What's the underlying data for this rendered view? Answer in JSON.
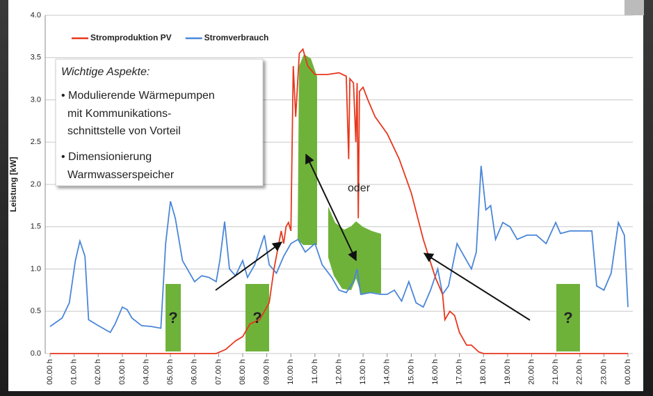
{
  "chart_data": {
    "type": "line",
    "ylabel": "Leistung [kW]",
    "xlim": [
      0,
      24
    ],
    "ylim": [
      0,
      4
    ],
    "yticks": [
      {
        "value": 0,
        "label": "0.0"
      },
      0.5,
      {
        "value": 1,
        "label": "1.0"
      },
      1.5,
      {
        "value": 2,
        "label": "2.0"
      },
      2.5,
      {
        "value": 3,
        "label": "3.0"
      },
      3.5,
      {
        "value": 4,
        "label": "4.0"
      }
    ],
    "xticks": [
      {
        "value": 0,
        "label": "00.00 h"
      },
      {
        "value": 1,
        "label": "01.00 h"
      },
      {
        "value": 2,
        "label": "02.00 h"
      },
      {
        "value": 3,
        "label": "03.00 h"
      },
      {
        "value": 4,
        "label": "04.00 h"
      },
      {
        "value": 5,
        "label": "05.00 h"
      },
      {
        "value": 6,
        "label": "06.00 h"
      },
      {
        "value": 7,
        "label": "07.00 h"
      },
      {
        "value": 8,
        "label": "08.00 h"
      },
      {
        "value": 9,
        "label": "09.00 h"
      },
      {
        "value": 10,
        "label": "10.00 h"
      },
      {
        "value": 11,
        "label": "11.00 h"
      },
      {
        "value": 12,
        "label": "12.00 h"
      },
      {
        "value": 13,
        "label": "13.00 h"
      },
      {
        "value": 14,
        "label": "14.00 h"
      },
      {
        "value": 15,
        "label": "15.00 h"
      },
      {
        "value": 16,
        "label": "16.00 h"
      },
      {
        "value": 17,
        "label": "17.00 h"
      },
      {
        "value": 18,
        "label": "18.00 h"
      },
      {
        "value": 19,
        "label": "19.00 h"
      },
      {
        "value": 20,
        "label": "20.00 h"
      },
      {
        "value": 21,
        "label": "21.00 h"
      },
      {
        "value": 22,
        "label": "22.00 h"
      },
      {
        "value": 23,
        "label": "23.00 h"
      },
      {
        "value": 24,
        "label": "00.00 h"
      }
    ],
    "grid": true,
    "legend": "top",
    "series": [
      {
        "name": "Stromproduktion PV",
        "color": "#e8361c",
        "x": [
          0,
          6.9,
          7.3,
          7.7,
          8.0,
          8.3,
          8.7,
          8.9,
          9.1,
          9.3,
          9.5,
          9.6,
          9.7,
          9.8,
          9.9,
          10.0,
          10.1,
          10.2,
          10.35,
          10.5,
          10.7,
          11.0,
          11.5,
          12.0,
          12.3,
          12.4,
          12.45,
          12.6,
          12.7,
          12.75,
          12.8,
          12.85,
          13.0,
          13.2,
          13.5,
          14.0,
          14.5,
          15.0,
          15.5,
          16.0,
          16.3,
          16.4,
          16.6,
          16.8,
          17.0,
          17.3,
          17.5,
          17.8,
          18.0,
          24
        ],
        "values": [
          0,
          0,
          0.05,
          0.15,
          0.2,
          0.35,
          0.4,
          0.5,
          0.6,
          1.0,
          1.3,
          1.45,
          1.3,
          1.5,
          1.55,
          1.45,
          3.4,
          2.8,
          3.55,
          3.6,
          3.4,
          3.3,
          3.3,
          3.32,
          3.28,
          2.3,
          3.25,
          3.2,
          2.5,
          3.2,
          1.6,
          3.1,
          3.15,
          3.0,
          2.8,
          2.6,
          2.3,
          1.9,
          1.35,
          0.9,
          0.7,
          0.4,
          0.5,
          0.45,
          0.25,
          0.1,
          0.1,
          0.02,
          0,
          0
        ]
      },
      {
        "name": "Stromverbrauch",
        "color": "#4a86d8",
        "x": [
          0,
          0.5,
          0.8,
          1.05,
          1.24,
          1.45,
          1.6,
          2.0,
          2.5,
          2.7,
          3.0,
          3.2,
          3.4,
          3.8,
          4.2,
          4.6,
          4.8,
          5.0,
          5.2,
          5.5,
          5.8,
          6.0,
          6.3,
          6.6,
          6.9,
          7.05,
          7.25,
          7.45,
          7.7,
          8.0,
          8.2,
          8.5,
          8.9,
          9.1,
          9.4,
          9.7,
          10.0,
          10.3,
          10.6,
          11.0,
          11.3,
          11.7,
          12.0,
          12.3,
          12.6,
          12.75,
          12.9,
          13.3,
          13.7,
          14.0,
          14.3,
          14.6,
          14.9,
          15.2,
          15.5,
          15.8,
          16.1,
          16.3,
          16.55,
          16.9,
          17.2,
          17.5,
          17.7,
          17.9,
          18.1,
          18.3,
          18.5,
          18.8,
          19.1,
          19.4,
          19.8,
          20.2,
          20.6,
          21.0,
          21.2,
          21.6,
          22.0,
          22.5,
          22.7,
          23.0,
          23.3,
          23.6,
          23.85,
          24.0
        ],
        "values": [
          0.32,
          0.42,
          0.6,
          1.1,
          1.33,
          1.15,
          0.4,
          0.33,
          0.25,
          0.35,
          0.55,
          0.52,
          0.42,
          0.33,
          0.32,
          0.3,
          1.3,
          1.8,
          1.6,
          1.1,
          0.95,
          0.85,
          0.92,
          0.9,
          0.85,
          1.1,
          1.56,
          1.0,
          0.92,
          1.1,
          0.9,
          1.05,
          1.4,
          1.05,
          0.95,
          1.15,
          1.3,
          1.35,
          1.2,
          1.3,
          1.05,
          0.9,
          0.75,
          0.72,
          0.85,
          1.0,
          0.7,
          0.72,
          0.7,
          0.7,
          0.75,
          0.62,
          0.85,
          0.6,
          0.55,
          0.75,
          1.0,
          0.7,
          0.8,
          1.3,
          1.15,
          1.0,
          1.2,
          2.22,
          1.7,
          1.75,
          1.35,
          1.55,
          1.5,
          1.35,
          1.4,
          1.4,
          1.3,
          1.55,
          1.42,
          1.45,
          1.45,
          1.45,
          0.8,
          0.75,
          0.95,
          1.55,
          1.4,
          0.55
        ]
      }
    ],
    "annotations": {
      "box": [
        "Wichtige Aspekte:",
        "• Modulierende Wärmepumpen",
        "mit Kommunikations-",
        "schnittstelle von Vorteil",
        "• Dimensionierung",
        "Warmwasserspeicher"
      ],
      "oder": "oder",
      "questions": [
        "?",
        "?",
        "?"
      ]
    }
  }
}
